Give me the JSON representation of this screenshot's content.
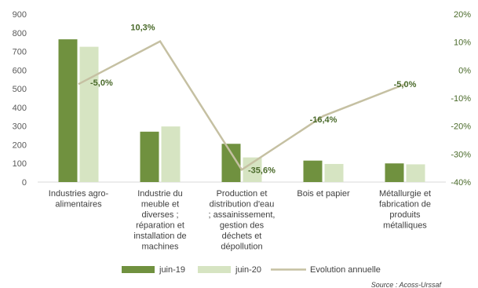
{
  "chart_data": {
    "type": "bar",
    "categories": [
      [
        "Industries agro-",
        "alimentaires"
      ],
      [
        "Industrie du",
        "meuble et",
        "diverses ;",
        "réparation et",
        "installation de",
        "machines"
      ],
      [
        "Production et",
        "distribution d'eau",
        "; assainissement,",
        "gestion des",
        "déchets et",
        "dépollution"
      ],
      [
        "Bois et papier"
      ],
      [
        "Métallurgie et",
        "fabrication de",
        "produits",
        "métalliques"
      ]
    ],
    "series": [
      {
        "name": "juin-19",
        "type": "bar",
        "axis": "left",
        "color": "#70913f",
        "values": [
          765,
          270,
          205,
          115,
          100
        ]
      },
      {
        "name": "juin-20",
        "type": "bar",
        "axis": "left",
        "color": "#d6e4c2",
        "values": [
          725,
          298,
          132,
          97,
          95
        ]
      },
      {
        "name": "Evolution annuelle",
        "type": "line",
        "axis": "right",
        "color": "#c5c0a2",
        "values": [
          -5.0,
          10.3,
          -35.6,
          -16.4,
          -5.0
        ]
      }
    ],
    "data_labels": [
      "-5,0%",
      "10,3%",
      "-35,6%",
      "-16,4%",
      "-5,0%"
    ],
    "left_axis": {
      "min": 0,
      "max": 900,
      "step": 100,
      "ticks": [
        "0",
        "100",
        "200",
        "300",
        "400",
        "500",
        "600",
        "700",
        "800",
        "900"
      ]
    },
    "right_axis": {
      "min": -40,
      "max": 20,
      "step": 10,
      "ticks": [
        "-40%",
        "-30%",
        "-20%",
        "-10%",
        "0%",
        "10%",
        "20%"
      ]
    },
    "legend_position": "bottom",
    "grid": false,
    "tick_color": "#595959",
    "label_color": "#4a6a2a"
  },
  "source": "Source : Acoss-Urssaf"
}
